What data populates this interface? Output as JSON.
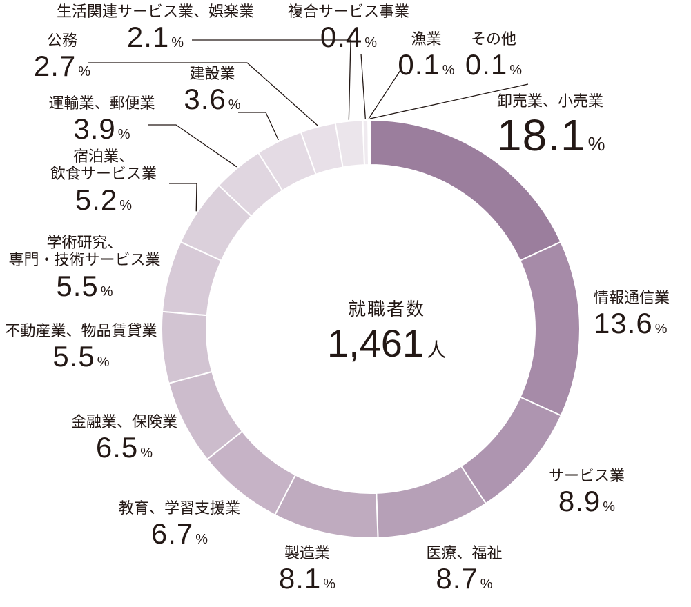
{
  "chart_data": {
    "type": "pie",
    "center_title": "就職者数",
    "center_value": "1,461",
    "center_unit": "人",
    "unit": "%",
    "categories": [
      "卸売業、小売業",
      "情報通信業",
      "サービス業",
      "医療、福祉",
      "製造業",
      "教育、学習支援業",
      "金融業、保険業",
      "不動産業、物品賃貸業",
      "学術研究、専門・技術サービス業",
      "宿泊業、飲食サービス業",
      "運輸業、郵便業",
      "建設業",
      "公務",
      "生活関連サービス業、娯楽業",
      "複合サービス事業",
      "漁業",
      "その他"
    ],
    "name_lines": [
      [
        "卸売業、小売業"
      ],
      [
        "情報通信業"
      ],
      [
        "サービス業"
      ],
      [
        "医療、福祉"
      ],
      [
        "製造業"
      ],
      [
        "教育、学習支援業"
      ],
      [
        "金融業、保険業"
      ],
      [
        "不動産業、物品賃貸業"
      ],
      [
        "学術研究、",
        "専門・技術サービス業"
      ],
      [
        "宿泊業、",
        "飲食サービス業"
      ],
      [
        "運輸業、郵便業"
      ],
      [
        "建設業"
      ],
      [
        "公務"
      ],
      [
        "生活関連サービス業、娯楽業"
      ],
      [
        "複合サービス事業"
      ],
      [
        "漁業"
      ],
      [
        "その他"
      ]
    ],
    "values": [
      18.1,
      13.6,
      8.9,
      8.7,
      8.1,
      6.7,
      6.5,
      5.5,
      5.5,
      5.2,
      3.9,
      3.6,
      2.7,
      2.1,
      0.4,
      0.1,
      0.1
    ],
    "value_labels": [
      "18.1",
      "13.6",
      "8.9",
      "8.7",
      "8.1",
      "6.7",
      "6.5",
      "5.5",
      "5.5",
      "5.2",
      "3.9",
      "3.6",
      "2.7",
      "2.1",
      "0.4",
      "0.1",
      "0.1"
    ],
    "colors": [
      "#9b7e9d",
      "#a68ba8",
      "#ae95b0",
      "#b6a0b7",
      "#bfabbf",
      "#c6b3c6",
      "#ccbccc",
      "#d2c4d2",
      "#d7cad7",
      "#dbd0db",
      "#e0d6e0",
      "#e4dbe4",
      "#e8e0e8",
      "#ebe5eb",
      "#efeaef",
      "#e6dde6",
      "#e2d9e2"
    ]
  }
}
